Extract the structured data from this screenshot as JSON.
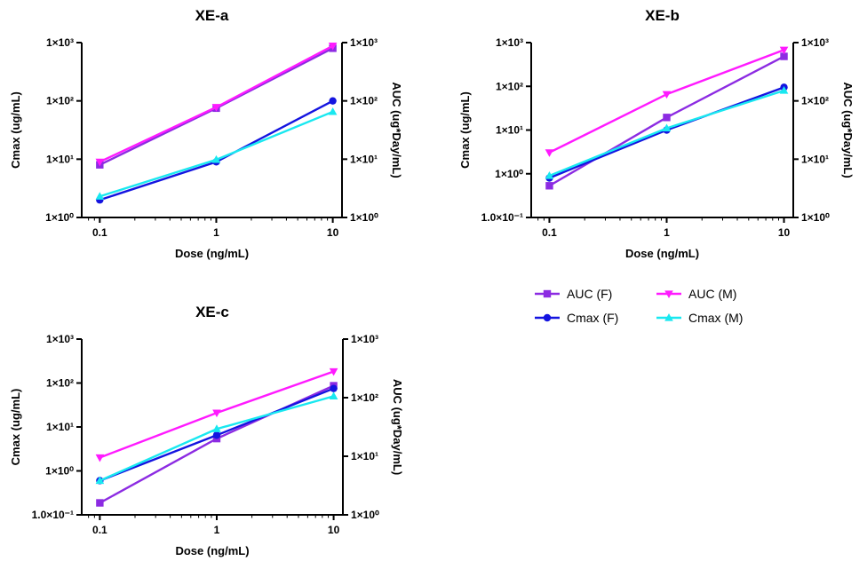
{
  "colors": {
    "auc_f": "#8c2be2",
    "auc_m": "#ff1aff",
    "cmax_f": "#1414e0",
    "cmax_m": "#19e8f0"
  },
  "legend": [
    {
      "name": "AUC (F)",
      "color_key": "auc_f",
      "marker": "square"
    },
    {
      "name": "AUC (M)",
      "color_key": "auc_m",
      "marker": "triangle-down"
    },
    {
      "name": "Cmax (F)",
      "color_key": "cmax_f",
      "marker": "circle"
    },
    {
      "name": "Cmax (M)",
      "color_key": "cmax_m",
      "marker": "triangle-up"
    }
  ],
  "chart_data": [
    {
      "type": "line",
      "title": "XE-a",
      "xlabel": "Dose (ng/mL)",
      "ylabel": "Cmax (ug/mL)",
      "y2label": "AUC (ug*Day/mL)",
      "x_scale": "log",
      "y_scale": "log",
      "xlim": [
        0.07,
        12
      ],
      "ylim": [
        1,
        1000
      ],
      "y2lim": [
        1,
        1000
      ],
      "x_ticks": [
        "0.1",
        "1",
        "10"
      ],
      "y_ticks": [
        "1×10⁰",
        "1×10¹",
        "1×10²",
        "1×10³"
      ],
      "y2_ticks": [
        "1×10⁰",
        "1×10¹",
        "1×10²",
        "1×10³"
      ],
      "x": [
        0.1,
        1,
        10
      ],
      "series": [
        {
          "name": "AUC (F)",
          "axis": "right",
          "values": [
            8,
            75,
            800
          ]
        },
        {
          "name": "AUC (M)",
          "axis": "right",
          "values": [
            9,
            78,
            880
          ]
        },
        {
          "name": "Cmax (F)",
          "axis": "left",
          "values": [
            2,
            9,
            100
          ]
        },
        {
          "name": "Cmax (M)",
          "axis": "left",
          "values": [
            2.3,
            9.8,
            65
          ]
        }
      ]
    },
    {
      "type": "line",
      "title": "XE-b",
      "xlabel": "Dose (ng/mL)",
      "ylabel": "Cmax (ug/mL)",
      "y2label": "AUC (ug*Day/mL)",
      "x_scale": "log",
      "y_scale": "log",
      "xlim": [
        0.07,
        12
      ],
      "ylim": [
        0.1,
        1000
      ],
      "y2lim": [
        1,
        1000
      ],
      "x_ticks": [
        "0.1",
        "1",
        "10"
      ],
      "y_ticks": [
        "1.0×10⁻¹",
        "1×10⁰",
        "1×10¹",
        "1×10²",
        "1×10³"
      ],
      "y2_ticks": [
        "1×10⁰",
        "1×10¹",
        "1×10²",
        "1×10³"
      ],
      "x": [
        0.1,
        1,
        10
      ],
      "series": [
        {
          "name": "AUC (F)",
          "axis": "right",
          "values": [
            3.5,
            52,
            580
          ]
        },
        {
          "name": "AUC (M)",
          "axis": "right",
          "values": [
            13,
            130,
            750
          ]
        },
        {
          "name": "Cmax (F)",
          "axis": "left",
          "values": [
            0.8,
            10,
            95
          ]
        },
        {
          "name": "Cmax (M)",
          "axis": "left",
          "values": [
            0.9,
            11,
            80
          ]
        }
      ]
    },
    {
      "type": "line",
      "title": "XE-c",
      "xlabel": "Dose (ng/mL)",
      "ylabel": "Cmax (ug/mL)",
      "y2label": "AUC (ug*Day/mL)",
      "x_scale": "log",
      "y_scale": "log",
      "xlim": [
        0.07,
        12
      ],
      "ylim": [
        0.1,
        1000
      ],
      "y2lim": [
        1,
        1000
      ],
      "x_ticks": [
        "0.1",
        "1",
        "10"
      ],
      "y_ticks": [
        "1.0×10⁻¹",
        "1×10⁰",
        "1×10¹",
        "1×10²",
        "1×10³"
      ],
      "y2_ticks": [
        "1×10⁰",
        "1×10¹",
        "1×10²",
        "1×10³"
      ],
      "x": [
        0.1,
        1,
        10
      ],
      "series": [
        {
          "name": "AUC (F)",
          "axis": "right",
          "values": [
            1.6,
            20,
            160
          ]
        },
        {
          "name": "AUC (M)",
          "axis": "right",
          "values": [
            9.5,
            55,
            280
          ]
        },
        {
          "name": "Cmax (F)",
          "axis": "left",
          "values": [
            0.6,
            6.5,
            75
          ]
        },
        {
          "name": "Cmax (M)",
          "axis": "left",
          "values": [
            0.6,
            9,
            50
          ]
        }
      ]
    }
  ]
}
